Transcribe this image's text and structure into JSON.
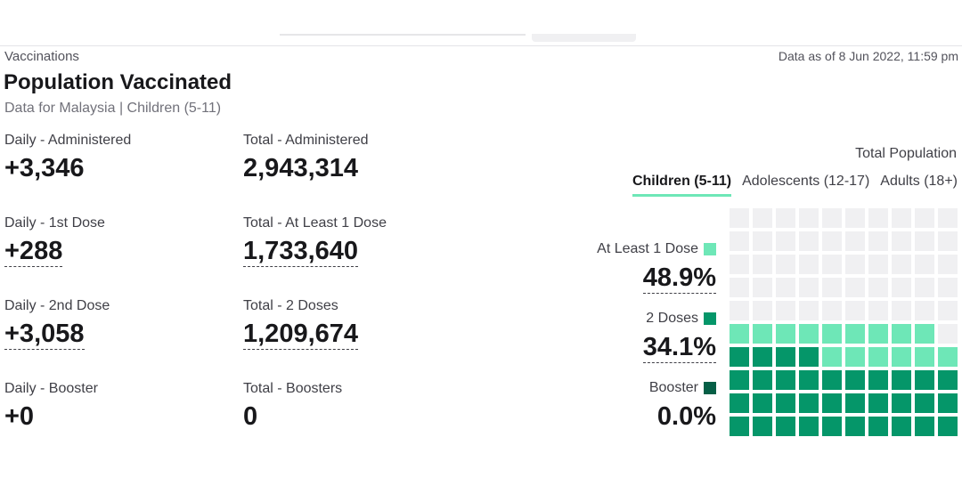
{
  "header": {
    "breadcrumb": "Vaccinations",
    "data_as_of": "Data as of 8 Jun 2022, 11:59 pm",
    "title": "Population Vaccinated",
    "subtitle": "Data for Malaysia | Children (5-11)"
  },
  "stats": {
    "daily_administered": {
      "label": "Daily - Administered",
      "value": "+3,346"
    },
    "total_administered": {
      "label": "Total - Administered",
      "value": "2,943,314"
    },
    "daily_first_dose": {
      "label": "Daily - 1st Dose",
      "value": "+288"
    },
    "total_at_least_one": {
      "label": "Total - At Least 1 Dose",
      "value": "1,733,640"
    },
    "daily_second_dose": {
      "label": "Daily - 2nd Dose",
      "value": "+3,058"
    },
    "total_two_doses": {
      "label": "Total - 2 Doses",
      "value": "1,209,674"
    },
    "daily_booster": {
      "label": "Daily - Booster",
      "value": "+0"
    },
    "total_boosters": {
      "label": "Total - Boosters",
      "value": "0"
    }
  },
  "panel": {
    "heading": "Total Population",
    "tabs": [
      {
        "label": "Children (5-11)",
        "active": true
      },
      {
        "label": "Adolescents (12-17)",
        "active": false
      },
      {
        "label": "Adults (18+)",
        "active": false
      }
    ],
    "legend": {
      "at_least_one": {
        "label": "At Least 1 Dose",
        "value": "48.9%",
        "color": "#6ee7b7"
      },
      "two_doses": {
        "label": "2 Doses",
        "value": "34.1%",
        "color": "#059669"
      },
      "booster": {
        "label": "Booster",
        "value": "0.0%",
        "color": "#065f46"
      }
    },
    "waffle": {
      "empty_color": "#f0f0f2",
      "at_least_one_fraction": 0.489,
      "two_doses_fraction": 0.341,
      "booster_fraction": 0.0
    }
  }
}
